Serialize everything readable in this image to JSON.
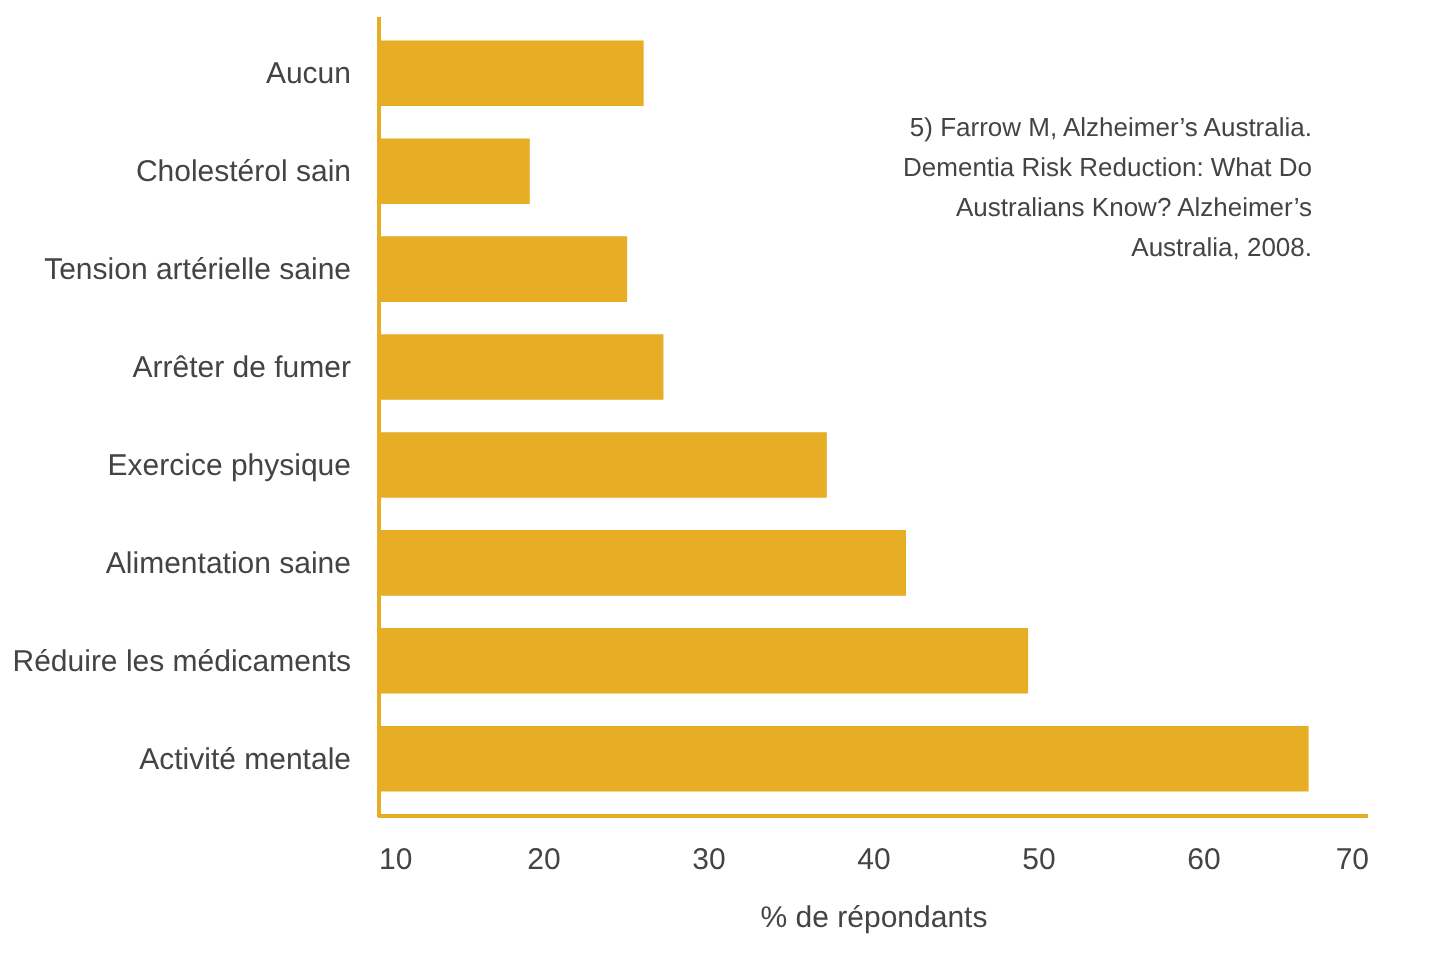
{
  "chart_data": {
    "type": "bar",
    "orientation": "horizontal",
    "categories": [
      "Aucun",
      "Cholestérol sain",
      "Tension artérielle saine",
      "Arrêter de fumer",
      "Exercice physique",
      "Alimentation saine",
      "Réduire les médicaments",
      "Activité mentale"
    ],
    "values": [
      26.1,
      19.2,
      25.1,
      27.3,
      37.2,
      42.0,
      49.4,
      66.4
    ],
    "color": "#e6ad25",
    "xlabel": "% de répondants",
    "xlim": [
      10,
      70
    ],
    "xticks": [
      10,
      20,
      30,
      40,
      50,
      60,
      70
    ],
    "grid": false,
    "annotations": [
      "5) Farrow M, Alzheimer’s Australia. Dementia Risk Reduction: What Do Australians Know? Alzheimer’s Australia, 2008."
    ]
  }
}
